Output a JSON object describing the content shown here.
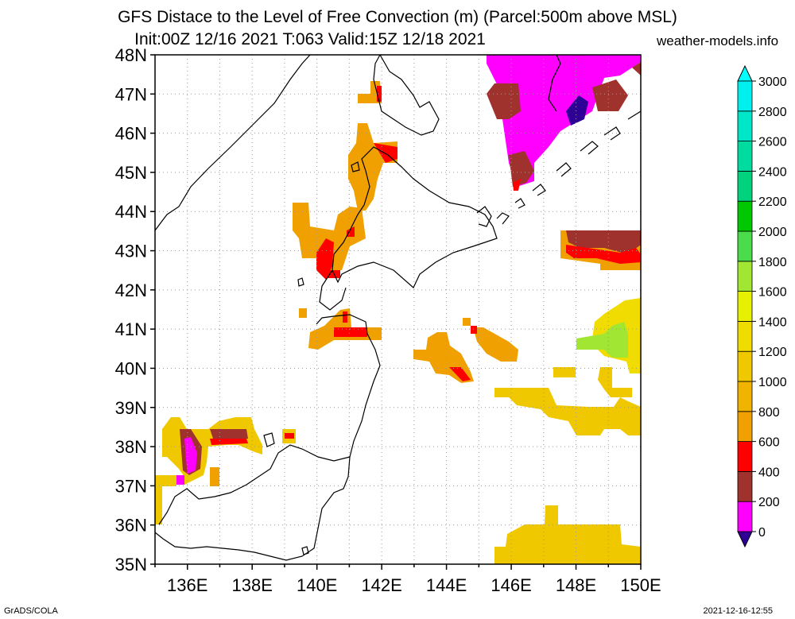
{
  "header": {
    "title_line1": "GFS Distace to the Level of Free Convection (m) (Parcel:500m above MSL)",
    "title_line2": "Init:00Z 12/16 2021 T:063 Valid:15Z 12/18 2021",
    "site": "weather-models.info"
  },
  "footer": {
    "left": "GrADS/COLA",
    "right": "2021-12-16-12:55"
  },
  "map": {
    "lon_range": [
      135,
      150
    ],
    "lat_range": [
      35,
      48
    ],
    "lat_labels": [
      "48N",
      "47N",
      "46N",
      "45N",
      "44N",
      "43N",
      "42N",
      "41N",
      "40N",
      "39N",
      "38N",
      "37N",
      "36N",
      "35N"
    ],
    "lon_labels": [
      "136E",
      "138E",
      "140E",
      "142E",
      "144E",
      "146E",
      "148E",
      "150E"
    ],
    "grid_style": "dotted"
  },
  "colorbar": {
    "labels": [
      "3000",
      "2800",
      "2600",
      "2400",
      "2200",
      "2000",
      "1800",
      "1600",
      "1400",
      "1200",
      "1000",
      "800",
      "600",
      "400",
      "200",
      "0"
    ],
    "colors": [
      "#2e0096",
      "#ff00ff",
      "#a0322d",
      "#ff0000",
      "#f0a000",
      "#f0b400",
      "#f0c800",
      "#f0dc00",
      "#e6f000",
      "#a0e632",
      "#4bdc4b",
      "#00c800",
      "#00d27d",
      "#00dca0",
      "#00e6c8",
      "#00f0f0",
      "#00ffff"
    ]
  }
}
